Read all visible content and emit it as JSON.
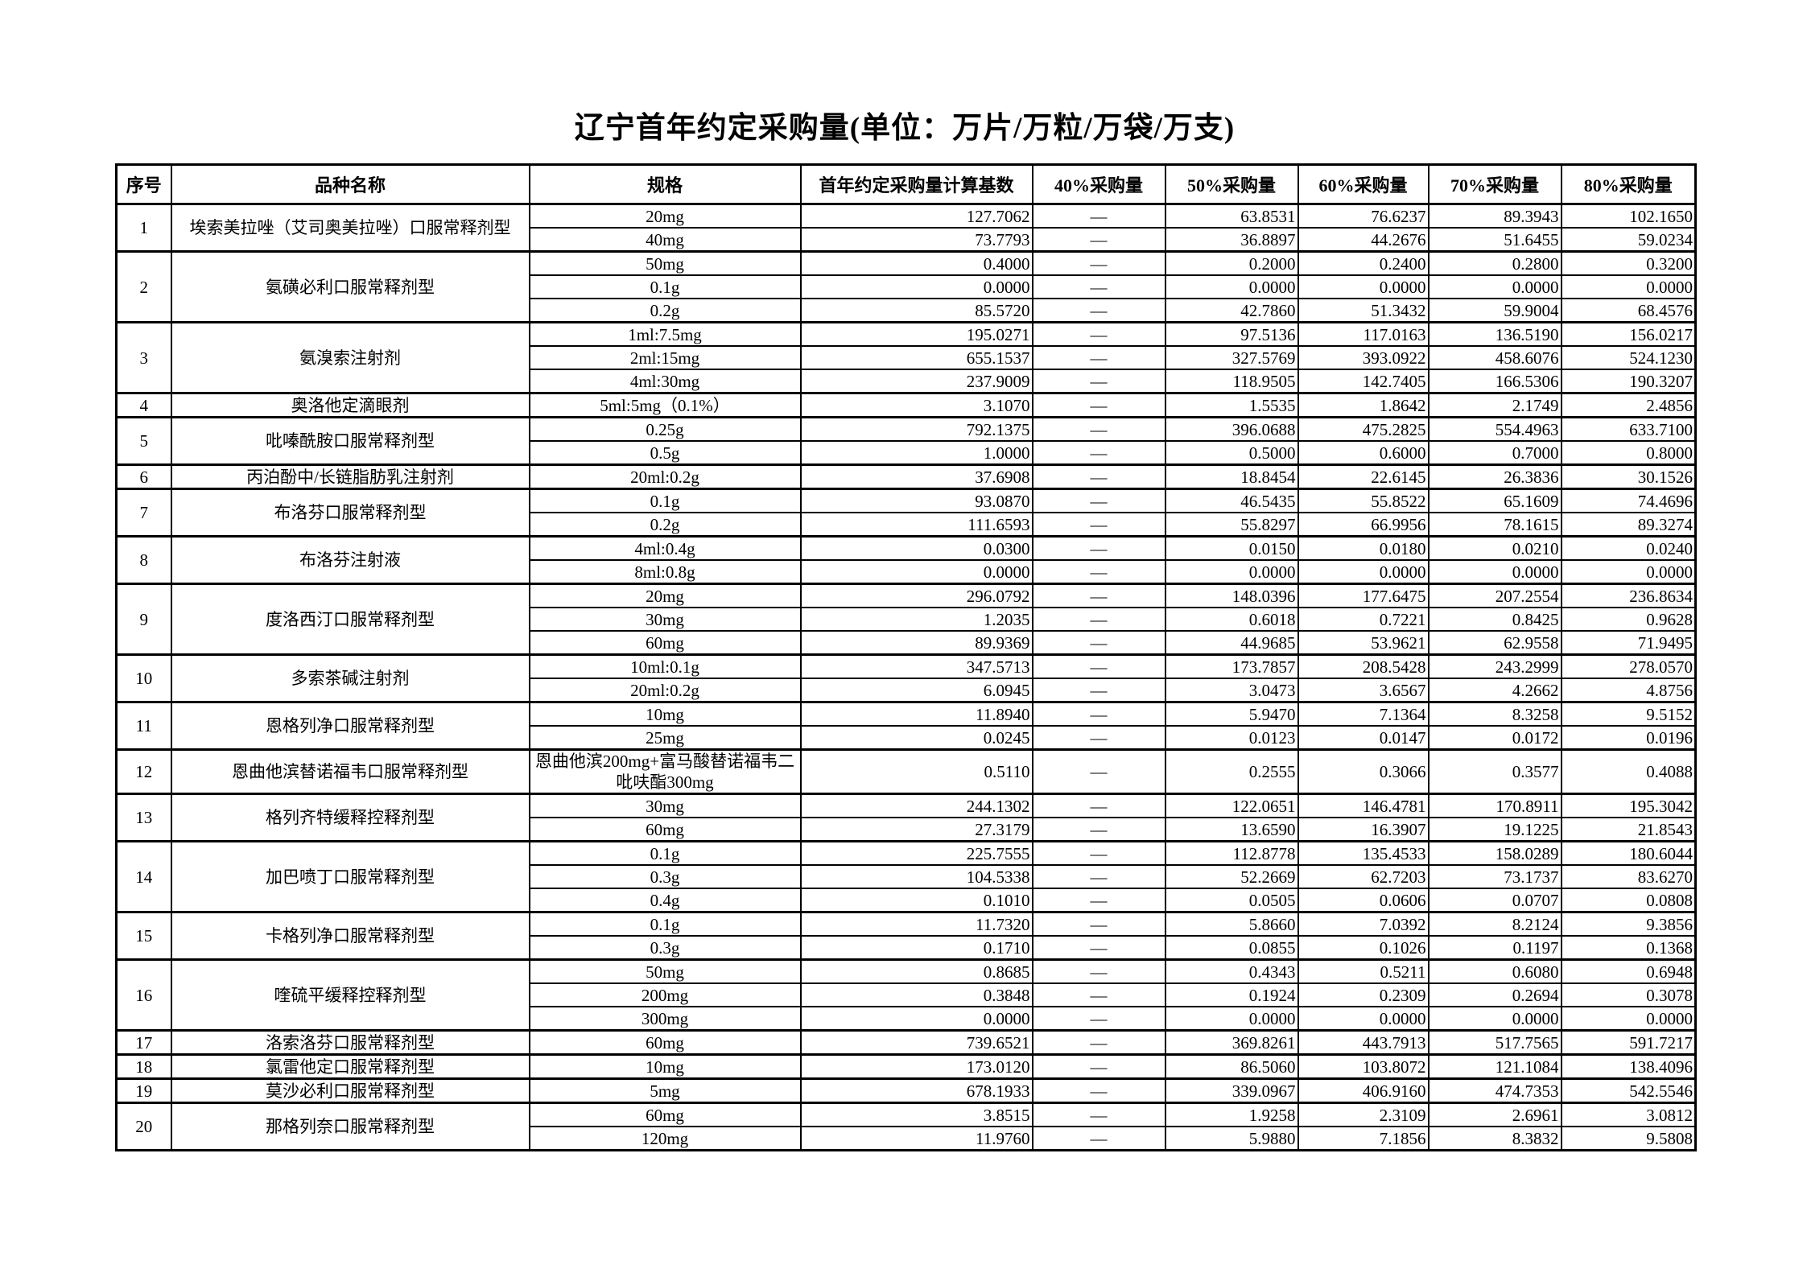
{
  "title": "辽宁首年约定采购量(单位：万片/万粒/万袋/万支)",
  "table": {
    "columns": [
      "序号",
      "品种名称",
      "规格",
      "首年约定采购量计算基数",
      "40%采购量",
      "50%采购量",
      "60%采购量",
      "70%采购量",
      "80%采购量"
    ],
    "groups": [
      {
        "no": "1",
        "name": "埃索美拉唑（艾司奥美拉唑）口服常释剂型",
        "rows": [
          [
            "20mg",
            "127.7062",
            "—",
            "63.8531",
            "76.6237",
            "89.3943",
            "102.1650"
          ],
          [
            "40mg",
            "73.7793",
            "—",
            "36.8897",
            "44.2676",
            "51.6455",
            "59.0234"
          ]
        ]
      },
      {
        "no": "2",
        "name": "氨磺必利口服常释剂型",
        "rows": [
          [
            "50mg",
            "0.4000",
            "—",
            "0.2000",
            "0.2400",
            "0.2800",
            "0.3200"
          ],
          [
            "0.1g",
            "0.0000",
            "—",
            "0.0000",
            "0.0000",
            "0.0000",
            "0.0000"
          ],
          [
            "0.2g",
            "85.5720",
            "—",
            "42.7860",
            "51.3432",
            "59.9004",
            "68.4576"
          ]
        ]
      },
      {
        "no": "3",
        "name": "氨溴索注射剂",
        "rows": [
          [
            "1ml:7.5mg",
            "195.0271",
            "—",
            "97.5136",
            "117.0163",
            "136.5190",
            "156.0217"
          ],
          [
            "2ml:15mg",
            "655.1537",
            "—",
            "327.5769",
            "393.0922",
            "458.6076",
            "524.1230"
          ],
          [
            "4ml:30mg",
            "237.9009",
            "—",
            "118.9505",
            "142.7405",
            "166.5306",
            "190.3207"
          ]
        ]
      },
      {
        "no": "4",
        "name": "奥洛他定滴眼剂",
        "rows": [
          [
            "5ml:5mg（0.1%）",
            "3.1070",
            "—",
            "1.5535",
            "1.8642",
            "2.1749",
            "2.4856"
          ]
        ]
      },
      {
        "no": "5",
        "name": "吡嗪酰胺口服常释剂型",
        "rows": [
          [
            "0.25g",
            "792.1375",
            "—",
            "396.0688",
            "475.2825",
            "554.4963",
            "633.7100"
          ],
          [
            "0.5g",
            "1.0000",
            "—",
            "0.5000",
            "0.6000",
            "0.7000",
            "0.8000"
          ]
        ]
      },
      {
        "no": "6",
        "name": "丙泊酚中/长链脂肪乳注射剂",
        "rows": [
          [
            "20ml:0.2g",
            "37.6908",
            "—",
            "18.8454",
            "22.6145",
            "26.3836",
            "30.1526"
          ]
        ]
      },
      {
        "no": "7",
        "name": "布洛芬口服常释剂型",
        "rows": [
          [
            "0.1g",
            "93.0870",
            "—",
            "46.5435",
            "55.8522",
            "65.1609",
            "74.4696"
          ],
          [
            "0.2g",
            "111.6593",
            "—",
            "55.8297",
            "66.9956",
            "78.1615",
            "89.3274"
          ]
        ]
      },
      {
        "no": "8",
        "name": "布洛芬注射液",
        "rows": [
          [
            "4ml:0.4g",
            "0.0300",
            "—",
            "0.0150",
            "0.0180",
            "0.0210",
            "0.0240"
          ],
          [
            "8ml:0.8g",
            "0.0000",
            "—",
            "0.0000",
            "0.0000",
            "0.0000",
            "0.0000"
          ]
        ]
      },
      {
        "no": "9",
        "name": "度洛西汀口服常释剂型",
        "rows": [
          [
            "20mg",
            "296.0792",
            "—",
            "148.0396",
            "177.6475",
            "207.2554",
            "236.8634"
          ],
          [
            "30mg",
            "1.2035",
            "—",
            "0.6018",
            "0.7221",
            "0.8425",
            "0.9628"
          ],
          [
            "60mg",
            "89.9369",
            "—",
            "44.9685",
            "53.9621",
            "62.9558",
            "71.9495"
          ]
        ]
      },
      {
        "no": "10",
        "name": "多索茶碱注射剂",
        "rows": [
          [
            "10ml:0.1g",
            "347.5713",
            "—",
            "173.7857",
            "208.5428",
            "243.2999",
            "278.0570"
          ],
          [
            "20ml:0.2g",
            "6.0945",
            "—",
            "3.0473",
            "3.6567",
            "4.2662",
            "4.8756"
          ]
        ]
      },
      {
        "no": "11",
        "name": "恩格列净口服常释剂型",
        "rows": [
          [
            "10mg",
            "11.8940",
            "—",
            "5.9470",
            "7.1364",
            "8.3258",
            "9.5152"
          ],
          [
            "25mg",
            "0.0245",
            "—",
            "0.0123",
            "0.0147",
            "0.0172",
            "0.0196"
          ]
        ]
      },
      {
        "no": "12",
        "name": "恩曲他滨替诺福韦口服常释剂型",
        "rows": [
          [
            "恩曲他滨200mg+富马酸替诺福韦二吡呋酯300mg",
            "0.5110",
            "—",
            "0.2555",
            "0.3066",
            "0.3577",
            "0.4088"
          ]
        ]
      },
      {
        "no": "13",
        "name": "格列齐特缓释控释剂型",
        "rows": [
          [
            "30mg",
            "244.1302",
            "—",
            "122.0651",
            "146.4781",
            "170.8911",
            "195.3042"
          ],
          [
            "60mg",
            "27.3179",
            "—",
            "13.6590",
            "16.3907",
            "19.1225",
            "21.8543"
          ]
        ]
      },
      {
        "no": "14",
        "name": "加巴喷丁口服常释剂型",
        "rows": [
          [
            "0.1g",
            "225.7555",
            "—",
            "112.8778",
            "135.4533",
            "158.0289",
            "180.6044"
          ],
          [
            "0.3g",
            "104.5338",
            "—",
            "52.2669",
            "62.7203",
            "73.1737",
            "83.6270"
          ],
          [
            "0.4g",
            "0.1010",
            "—",
            "0.0505",
            "0.0606",
            "0.0707",
            "0.0808"
          ]
        ]
      },
      {
        "no": "15",
        "name": "卡格列净口服常释剂型",
        "rows": [
          [
            "0.1g",
            "11.7320",
            "—",
            "5.8660",
            "7.0392",
            "8.2124",
            "9.3856"
          ],
          [
            "0.3g",
            "0.1710",
            "—",
            "0.0855",
            "0.1026",
            "0.1197",
            "0.1368"
          ]
        ]
      },
      {
        "no": "16",
        "name": "喹硫平缓释控释剂型",
        "rows": [
          [
            "50mg",
            "0.8685",
            "—",
            "0.4343",
            "0.5211",
            "0.6080",
            "0.6948"
          ],
          [
            "200mg",
            "0.3848",
            "—",
            "0.1924",
            "0.2309",
            "0.2694",
            "0.3078"
          ],
          [
            "300mg",
            "0.0000",
            "—",
            "0.0000",
            "0.0000",
            "0.0000",
            "0.0000"
          ]
        ]
      },
      {
        "no": "17",
        "name": "洛索洛芬口服常释剂型",
        "rows": [
          [
            "60mg",
            "739.6521",
            "—",
            "369.8261",
            "443.7913",
            "517.7565",
            "591.7217"
          ]
        ]
      },
      {
        "no": "18",
        "name": "氯雷他定口服常释剂型",
        "rows": [
          [
            "10mg",
            "173.0120",
            "—",
            "86.5060",
            "103.8072",
            "121.1084",
            "138.4096"
          ]
        ]
      },
      {
        "no": "19",
        "name": "莫沙必利口服常释剂型",
        "rows": [
          [
            "5mg",
            "678.1933",
            "—",
            "339.0967",
            "406.9160",
            "474.7353",
            "542.5546"
          ]
        ]
      },
      {
        "no": "20",
        "name": "那格列奈口服常释剂型",
        "rows": [
          [
            "60mg",
            "3.8515",
            "—",
            "1.9258",
            "2.3109",
            "2.6961",
            "3.0812"
          ],
          [
            "120mg",
            "11.9760",
            "—",
            "5.9880",
            "7.1856",
            "8.3832",
            "9.5808"
          ]
        ]
      }
    ]
  }
}
